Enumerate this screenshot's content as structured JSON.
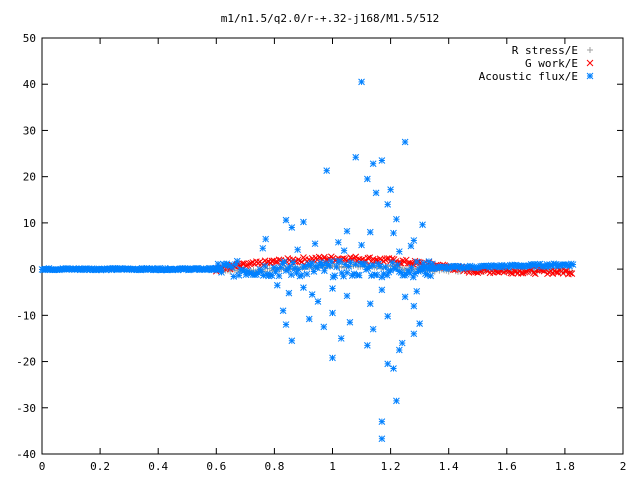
{
  "chart_data": {
    "type": "scatter",
    "title": "m1/n1.5/q2.0/r-+.32-j168/M1.5/512",
    "xlabel": "",
    "ylabel": "",
    "xlim": [
      0,
      2
    ],
    "ylim": [
      -40,
      50
    ],
    "xticks": [
      "0",
      "0.2",
      "0.4",
      "0.6",
      "0.8",
      "1",
      "1.2",
      "1.4",
      "1.6",
      "1.8",
      "2"
    ],
    "yticks": [
      "50",
      "40",
      "30",
      "20",
      "10",
      "0",
      "-10",
      "-20",
      "-30",
      "-40"
    ],
    "grid": false,
    "legend_position": "top-right",
    "series": [
      {
        "name": "R stress/E",
        "marker": "plus",
        "color": "#a0a0a0"
      },
      {
        "name": "G work/E",
        "marker": "cross",
        "color": "#ff0000"
      },
      {
        "name": "Acoustic flux/E",
        "marker": "star",
        "color": "#0080ff"
      }
    ],
    "acoustic_outliers": [
      [
        1.1,
        40.5
      ],
      [
        1.25,
        27.5
      ],
      [
        1.08,
        24.2
      ],
      [
        1.17,
        23.5
      ],
      [
        1.14,
        22.8
      ],
      [
        0.98,
        21.3
      ],
      [
        1.12,
        19.5
      ],
      [
        1.2,
        17.2
      ],
      [
        1.15,
        16.5
      ],
      [
        1.19,
        14.0
      ],
      [
        0.84,
        10.6
      ],
      [
        1.22,
        10.8
      ],
      [
        0.9,
        10.2
      ],
      [
        1.31,
        9.6
      ],
      [
        0.86,
        9.0
      ],
      [
        1.05,
        8.2
      ],
      [
        1.13,
        8.0
      ],
      [
        1.21,
        7.8
      ],
      [
        0.77,
        6.5
      ],
      [
        1.28,
        6.2
      ],
      [
        1.02,
        5.8
      ],
      [
        0.94,
        5.5
      ],
      [
        1.1,
        5.2
      ],
      [
        1.27,
        5.0
      ],
      [
        0.76,
        4.5
      ],
      [
        0.88,
        4.2
      ],
      [
        1.04,
        4.0
      ],
      [
        1.23,
        3.8
      ],
      [
        0.81,
        -3.5
      ],
      [
        0.9,
        -4.0
      ],
      [
        1.0,
        -4.2
      ],
      [
        1.17,
        -4.5
      ],
      [
        1.29,
        -4.8
      ],
      [
        0.85,
        -5.2
      ],
      [
        0.93,
        -5.5
      ],
      [
        1.05,
        -5.8
      ],
      [
        1.25,
        -6.0
      ],
      [
        0.95,
        -7.0
      ],
      [
        1.13,
        -7.5
      ],
      [
        1.28,
        -8.0
      ],
      [
        0.83,
        -9.0
      ],
      [
        1.0,
        -9.5
      ],
      [
        1.19,
        -10.2
      ],
      [
        0.92,
        -10.8
      ],
      [
        1.06,
        -11.5
      ],
      [
        1.3,
        -11.8
      ],
      [
        0.84,
        -12.0
      ],
      [
        0.97,
        -12.5
      ],
      [
        1.14,
        -13.0
      ],
      [
        1.28,
        -14.0
      ],
      [
        1.03,
        -15.0
      ],
      [
        0.86,
        -15.5
      ],
      [
        1.24,
        -16.0
      ],
      [
        1.12,
        -16.5
      ],
      [
        1.23,
        -17.5
      ],
      [
        1.0,
        -19.2
      ],
      [
        1.19,
        -20.5
      ],
      [
        1.21,
        -21.5
      ],
      [
        1.22,
        -28.5
      ],
      [
        1.17,
        -33.0
      ],
      [
        1.17,
        -36.7
      ]
    ]
  }
}
